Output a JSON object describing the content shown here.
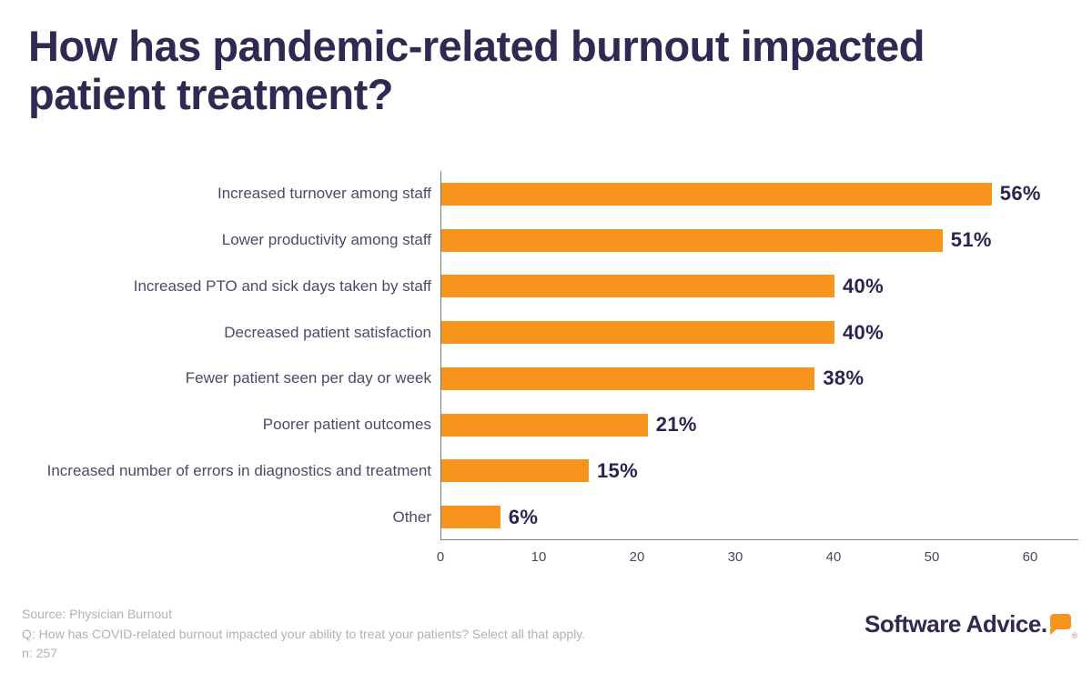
{
  "header": {
    "title_line1": "How has pandemic-related burnout impacted",
    "title_line2": "patient treatment?"
  },
  "chart_data": {
    "type": "bar",
    "orientation": "horizontal",
    "title": "How has pandemic-related burnout impacted patient treatment?",
    "categories": [
      "Increased turnover among staff",
      "Lower productivity among staff",
      "Increased PTO and sick days taken by staff",
      "Decreased patient satisfaction",
      "Fewer patient seen per day or week",
      "Poorer patient outcomes",
      "Increased number of errors in diagnostics and treatment",
      "Other"
    ],
    "values": [
      56,
      51,
      40,
      40,
      38,
      21,
      15,
      6
    ],
    "value_labels": [
      "56%",
      "51%",
      "40%",
      "40%",
      "38%",
      "21%",
      "15%",
      "6%"
    ],
    "x_ticks": [
      0,
      10,
      20,
      30,
      40,
      50,
      60
    ],
    "xlim": [
      0,
      65
    ],
    "xlabel": "",
    "ylabel": "",
    "grid": false,
    "legend": false,
    "bar_color": "#f7941e",
    "value_label_color": "#2a2550",
    "category_label_color": "#4d4968",
    "axis_line_color": "#7b7983"
  },
  "footer": {
    "source": "Source: Physician Burnout",
    "question": "Q: How has COVID-related burnout impacted your ability to treat your patients? Select all that apply.",
    "n": "n: 257"
  },
  "logo": {
    "text": "Software Advice.",
    "registered": "®",
    "bubble_color": "#f7941e",
    "text_color": "#2e2a52"
  }
}
